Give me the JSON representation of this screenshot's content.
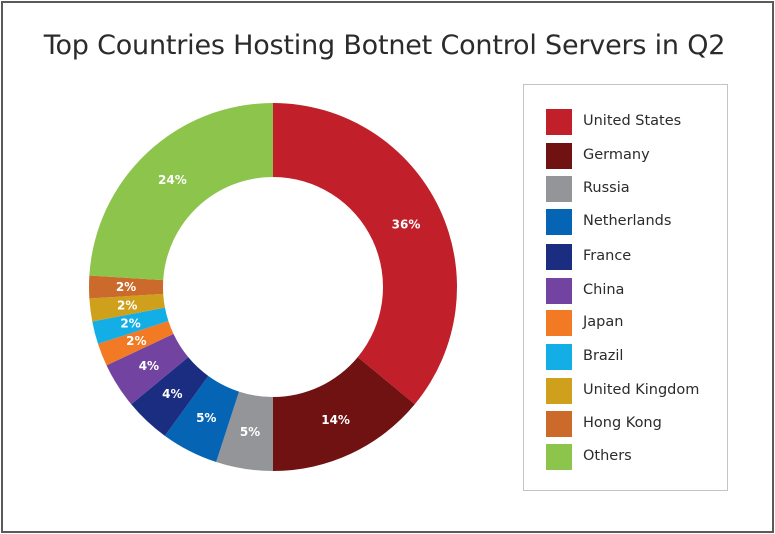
{
  "chart_data": {
    "type": "pie",
    "title": "Top Countries Hosting Botnet Control Servers in Q2",
    "categories": [
      "United States",
      "Germany",
      "Russia",
      "Netherlands",
      "France",
      "China",
      "Japan",
      "Brazil",
      "United Kingdom",
      "Hong Kong",
      "Others"
    ],
    "values": [
      36,
      14,
      5,
      5,
      4,
      4,
      2,
      2,
      2,
      2,
      24
    ],
    "value_labels": [
      "36%",
      "14%",
      "5%",
      "5%",
      "4%",
      "4%",
      "2%",
      "2%",
      "2%",
      "2%",
      "24%"
    ],
    "colors": [
      "#c1202a",
      "#701212",
      "#939598",
      "#0565b4",
      "#1a2d80",
      "#7243a0",
      "#f37a25",
      "#13aee6",
      "#cfa01c",
      "#cc6a2c",
      "#8cc44c"
    ],
    "donut": true,
    "legend_position": "right"
  }
}
